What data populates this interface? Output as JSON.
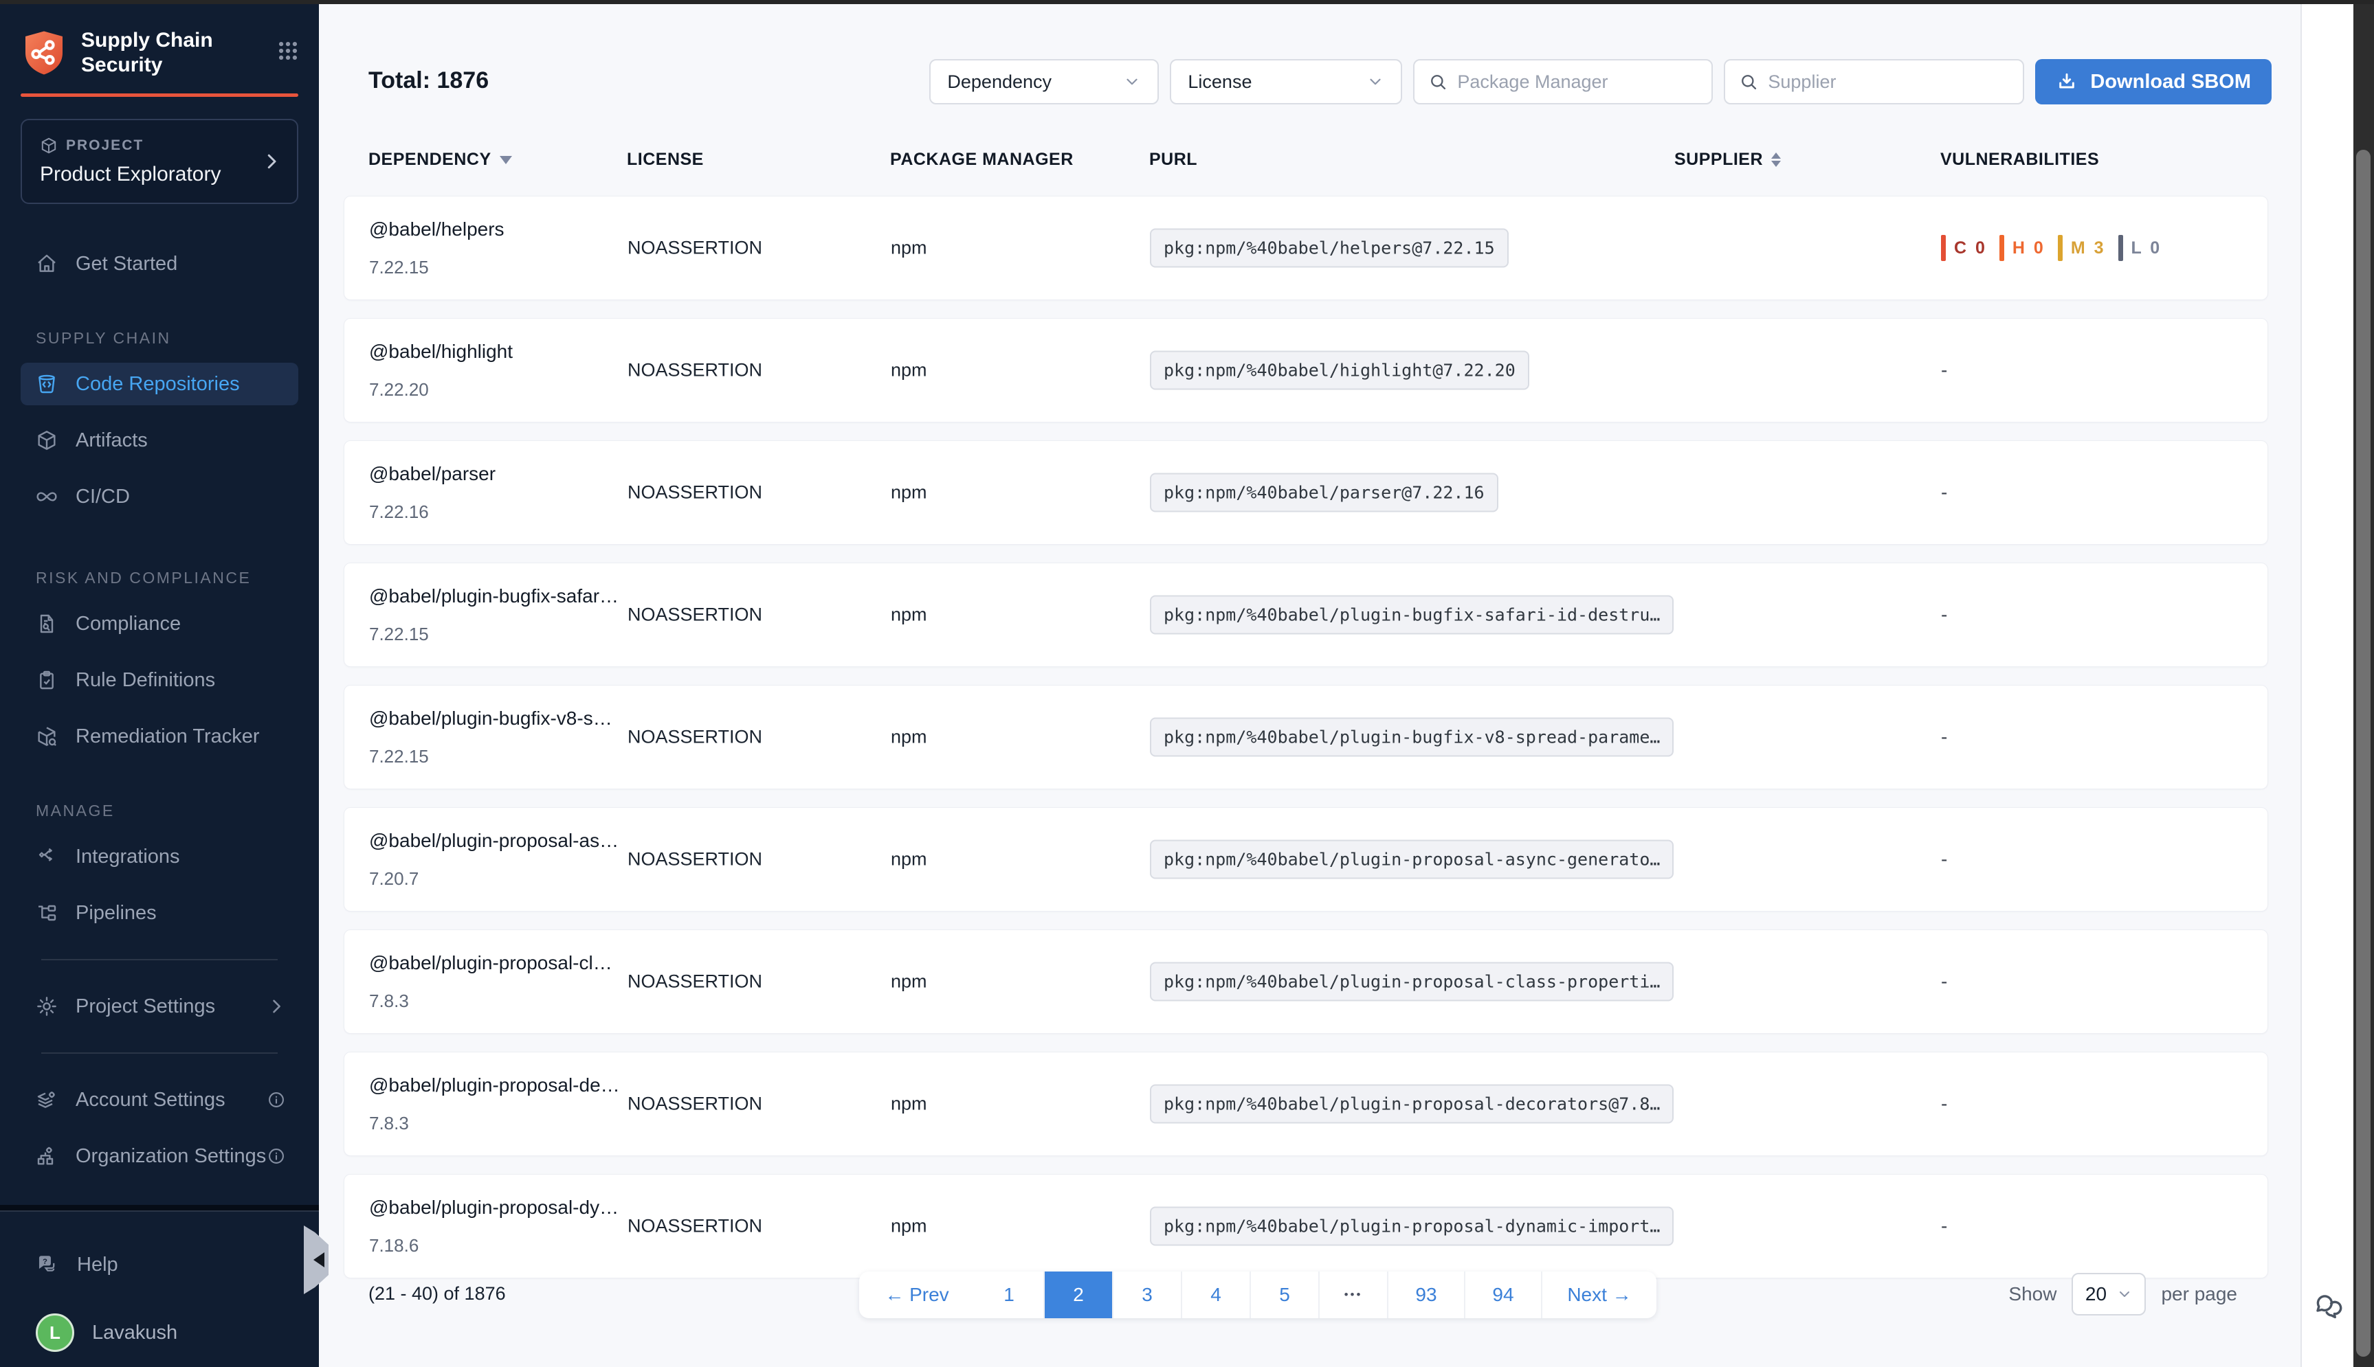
{
  "app": {
    "title_line1": "Supply Chain",
    "title_line2": "Security"
  },
  "sidebar": {
    "project_label": "PROJECT",
    "project_name": "Product Exploratory",
    "get_started": "Get Started",
    "section_supply_chain": "SUPPLY CHAIN",
    "code_repositories": "Code Repositories",
    "artifacts": "Artifacts",
    "cicd": "CI/CD",
    "section_risk": "RISK AND COMPLIANCE",
    "compliance": "Compliance",
    "rule_definitions": "Rule Definitions",
    "remediation_tracker": "Remediation Tracker",
    "section_manage": "MANAGE",
    "integrations": "Integrations",
    "pipelines": "Pipelines",
    "project_settings": "Project Settings",
    "account_settings": "Account Settings",
    "organization_settings": "Organization Settings",
    "help": "Help",
    "user_initial": "L",
    "user_name": "Lavakush"
  },
  "header": {
    "total": "Total: 1876",
    "dependency_filter": "Dependency",
    "license_filter": "License",
    "package_manager_placeholder": "Package Manager",
    "supplier_placeholder": "Supplier",
    "download_sbom": "Download SBOM"
  },
  "table": {
    "columns": {
      "dependency": "DEPENDENCY",
      "license": "LICENSE",
      "package_manager": "PACKAGE MANAGER",
      "purl": "PURL",
      "supplier": "SUPPLIER",
      "vulnerabilities": "VULNERABILITIES"
    },
    "empty_value": "-",
    "rows": [
      {
        "name": "@babel/helpers",
        "version": "7.22.15",
        "license": "NOASSERTION",
        "package_manager": "npm",
        "purl": "pkg:npm/%40babel/helpers@7.22.15",
        "vulnerabilities": [
          {
            "severity": "C",
            "count": "0"
          },
          {
            "severity": "H",
            "count": "0"
          },
          {
            "severity": "M",
            "count": "3"
          },
          {
            "severity": "L",
            "count": "0"
          }
        ]
      },
      {
        "name": "@babel/highlight",
        "version": "7.22.20",
        "license": "NOASSERTION",
        "package_manager": "npm",
        "purl": "pkg:npm/%40babel/highlight@7.22.20",
        "vulnerabilities": null
      },
      {
        "name": "@babel/parser",
        "version": "7.22.16",
        "license": "NOASSERTION",
        "package_manager": "npm",
        "purl": "pkg:npm/%40babel/parser@7.22.16",
        "vulnerabilities": null
      },
      {
        "name": "@babel/plugin-bugfix-safar…",
        "version": "7.22.15",
        "license": "NOASSERTION",
        "package_manager": "npm",
        "purl": "pkg:npm/%40babel/plugin-bugfix-safari-id-destru…",
        "vulnerabilities": null
      },
      {
        "name": "@babel/plugin-bugfix-v8-s…",
        "version": "7.22.15",
        "license": "NOASSERTION",
        "package_manager": "npm",
        "purl": "pkg:npm/%40babel/plugin-bugfix-v8-spread-parame…",
        "vulnerabilities": null
      },
      {
        "name": "@babel/plugin-proposal-as…",
        "version": "7.20.7",
        "license": "NOASSERTION",
        "package_manager": "npm",
        "purl": "pkg:npm/%40babel/plugin-proposal-async-generato…",
        "vulnerabilities": null
      },
      {
        "name": "@babel/plugin-proposal-cl…",
        "version": "7.8.3",
        "license": "NOASSERTION",
        "package_manager": "npm",
        "purl": "pkg:npm/%40babel/plugin-proposal-class-properti…",
        "vulnerabilities": null
      },
      {
        "name": "@babel/plugin-proposal-de…",
        "version": "7.8.3",
        "license": "NOASSERTION",
        "package_manager": "npm",
        "purl": "pkg:npm/%40babel/plugin-proposal-decorators@7.8…",
        "vulnerabilities": null
      },
      {
        "name": "@babel/plugin-proposal-dy…",
        "version": "7.18.6",
        "license": "NOASSERTION",
        "package_manager": "npm",
        "purl": "pkg:npm/%40babel/plugin-proposal-dynamic-import…",
        "vulnerabilities": null
      }
    ]
  },
  "pagination": {
    "range": "(21 - 40) of 1876",
    "prev": "← Prev",
    "next": "Next →",
    "pages": [
      {
        "label": "1"
      },
      {
        "label": "2",
        "active": true
      },
      {
        "label": "3"
      },
      {
        "label": "4"
      },
      {
        "label": "5"
      },
      {
        "label": "•••",
        "type": "ellipsis"
      },
      {
        "label": "93",
        "wide": true
      },
      {
        "label": "94",
        "wide": true
      }
    ],
    "show_label": "Show",
    "page_size": "20",
    "per_page_label": "per page"
  },
  "colors": {
    "accent_orange": "#e8543c",
    "accent_blue": "#3a7cd5",
    "active_nav_blue": "#47a6f2",
    "avatar_green": "#5bb85d",
    "severity": {
      "C": {
        "bar": "#e34f35",
        "text": "#a8362c"
      },
      "H": {
        "bar": "#f0662c",
        "text": "#ee6830"
      },
      "M": {
        "bar": "#dca42e",
        "text": "#d8a137"
      },
      "L": {
        "bar": "#5d6477",
        "text": "#7c8498"
      }
    }
  }
}
